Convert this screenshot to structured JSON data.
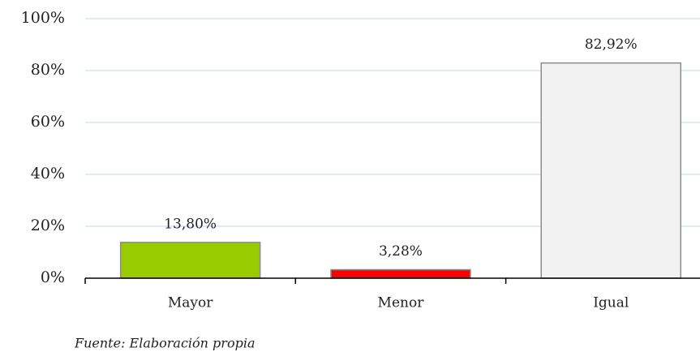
{
  "chart_data": {
    "type": "bar",
    "categories": [
      "Mayor",
      "Menor",
      "Igual"
    ],
    "values": [
      13.8,
      3.28,
      82.92
    ],
    "value_labels": [
      "13,80%",
      "3,28%",
      "82,92%"
    ],
    "colors": [
      "#99cc00",
      "#ff0000",
      "#f2f2f2"
    ],
    "ylim": [
      0,
      100
    ],
    "yticks": [
      {
        "value": 0,
        "label": "0%"
      },
      {
        "value": 20,
        "label": "20%"
      },
      {
        "value": 40,
        "label": "40%"
      },
      {
        "value": 60,
        "label": "60%"
      },
      {
        "value": 80,
        "label": "80%"
      },
      {
        "value": 100,
        "label": "100%"
      }
    ],
    "grid": true,
    "source": "Fuente: Elaboración propia"
  }
}
